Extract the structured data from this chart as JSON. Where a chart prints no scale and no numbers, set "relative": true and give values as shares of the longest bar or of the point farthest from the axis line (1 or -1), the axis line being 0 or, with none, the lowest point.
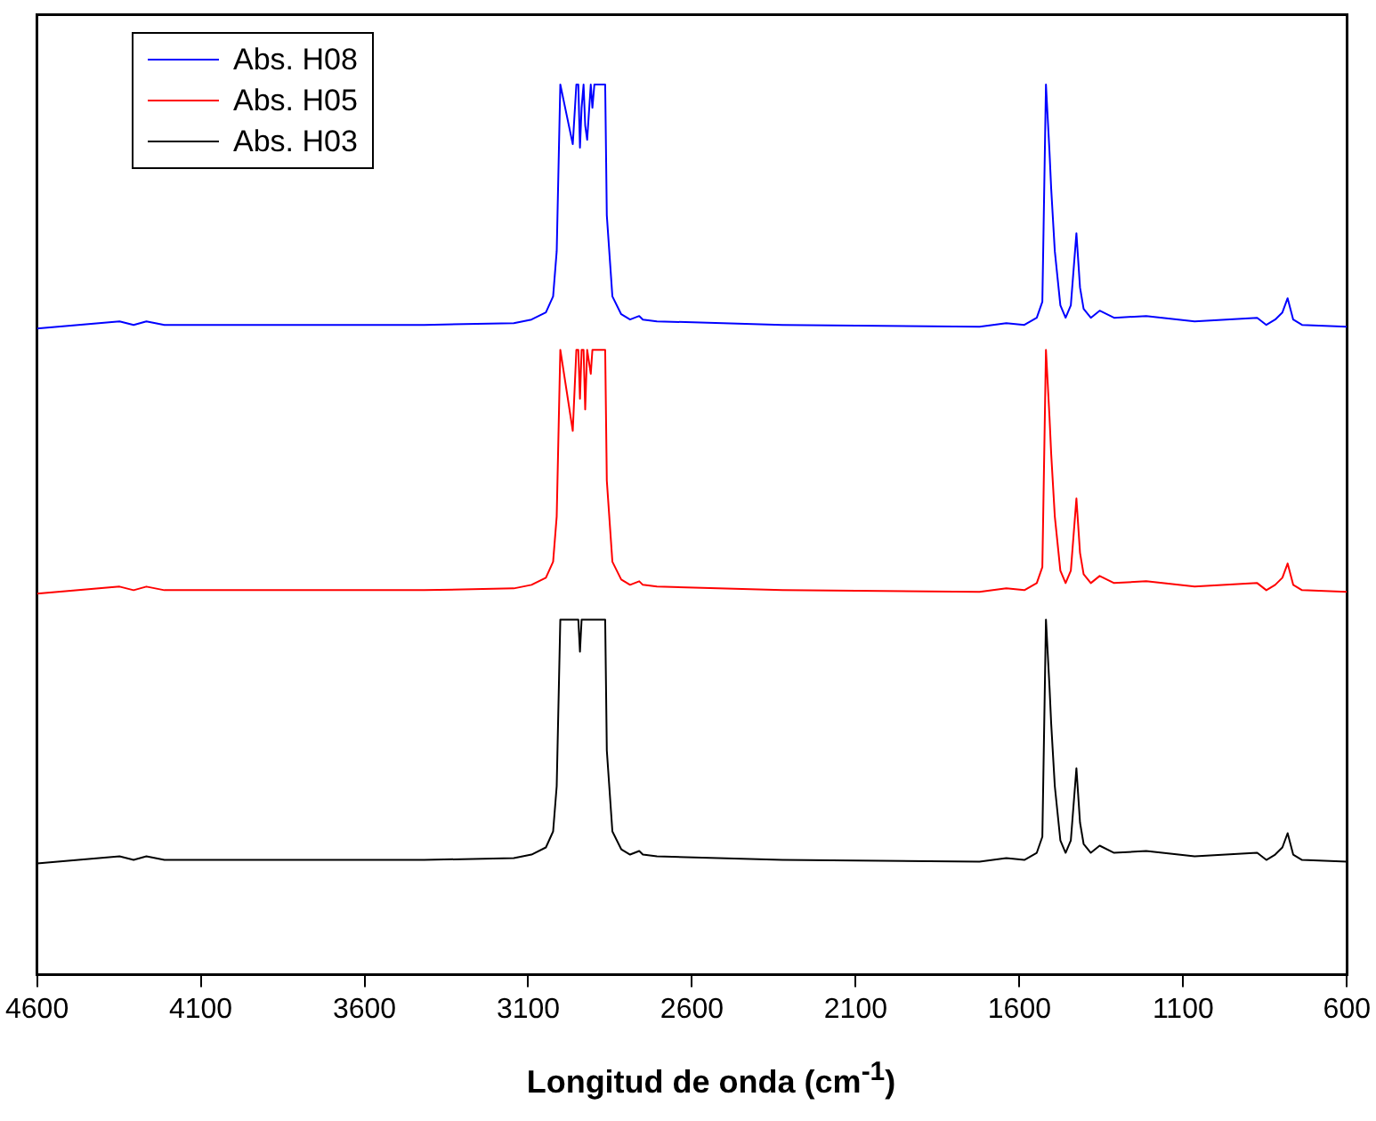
{
  "chart_data": {
    "type": "line",
    "xlabel": "Longitud de onda (cm$^{-1}$)",
    "relative": true,
    "legend": "top left",
    "marker": "none",
    "line_style": "solid",
    "grid": false,
    "xlim": [
      4600,
      600
    ],
    "xticks": [
      4600,
      4100,
      3600,
      3100,
      2600,
      2100,
      1600,
      1100,
      600
    ],
    "x": [
      4600,
      4348,
      4305,
      4266,
      4211,
      3418,
      3144,
      3090,
      3046,
      3024,
      3013,
      3002,
      2964,
      2953,
      2947,
      2942,
      2937,
      2931,
      2926,
      2920,
      2909,
      2904,
      2898,
      2865,
      2860,
      2843,
      2816,
      2789,
      2761,
      2750,
      2707,
      2324,
      1722,
      1640,
      1585,
      1547,
      1530,
      1519,
      1508,
      1503,
      1492,
      1475,
      1459,
      1443,
      1426,
      1415,
      1404,
      1382,
      1355,
      1311,
      1213,
      1065,
      874,
      846,
      819,
      797,
      781,
      764,
      737,
      600
    ],
    "series": [
      {
        "name": "Abs. H08",
        "color": "#0000ff",
        "values": [
          0.726,
          0.734,
          0.73,
          0.734,
          0.73,
          0.73,
          0.732,
          0.736,
          0.744,
          0.762,
          0.813,
          1.0,
          0.933,
          1.0,
          1.0,
          0.929,
          0.974,
          1.0,
          0.954,
          0.938,
          1.0,
          0.974,
          1.0,
          1.0,
          0.853,
          0.762,
          0.742,
          0.736,
          0.74,
          0.736,
          0.734,
          0.73,
          0.728,
          0.732,
          0.73,
          0.738,
          0.756,
          1.0,
          0.923,
          0.883,
          0.813,
          0.752,
          0.738,
          0.752,
          0.833,
          0.772,
          0.748,
          0.738,
          0.746,
          0.738,
          0.74,
          0.734,
          0.738,
          0.73,
          0.736,
          0.744,
          0.76,
          0.736,
          0.73,
          0.728
        ]
      },
      {
        "name": "Abs. H05",
        "color": "#ff0000",
        "values": [
          0.428,
          0.436,
          0.432,
          0.436,
          0.432,
          0.432,
          0.434,
          0.438,
          0.446,
          0.464,
          0.515,
          0.702,
          0.611,
          0.702,
          0.702,
          0.647,
          0.702,
          0.702,
          0.635,
          0.702,
          0.675,
          0.702,
          0.702,
          0.702,
          0.555,
          0.464,
          0.444,
          0.438,
          0.442,
          0.438,
          0.436,
          0.432,
          0.43,
          0.434,
          0.432,
          0.44,
          0.458,
          0.702,
          0.625,
          0.585,
          0.515,
          0.454,
          0.44,
          0.454,
          0.535,
          0.474,
          0.45,
          0.44,
          0.448,
          0.44,
          0.442,
          0.436,
          0.44,
          0.432,
          0.438,
          0.446,
          0.462,
          0.438,
          0.432,
          0.43
        ]
      },
      {
        "name": "Abs. H03",
        "color": "#000000",
        "values": [
          0.125,
          0.133,
          0.129,
          0.133,
          0.129,
          0.129,
          0.131,
          0.135,
          0.143,
          0.161,
          0.212,
          0.399,
          0.399,
          0.399,
          0.399,
          0.363,
          0.399,
          0.399,
          0.399,
          0.399,
          0.399,
          0.399,
          0.399,
          0.399,
          0.252,
          0.161,
          0.141,
          0.135,
          0.139,
          0.135,
          0.133,
          0.129,
          0.127,
          0.131,
          0.129,
          0.137,
          0.155,
          0.399,
          0.322,
          0.282,
          0.212,
          0.151,
          0.137,
          0.151,
          0.232,
          0.171,
          0.147,
          0.137,
          0.145,
          0.137,
          0.139,
          0.133,
          0.137,
          0.129,
          0.135,
          0.143,
          0.159,
          0.135,
          0.129,
          0.127
        ]
      }
    ]
  }
}
